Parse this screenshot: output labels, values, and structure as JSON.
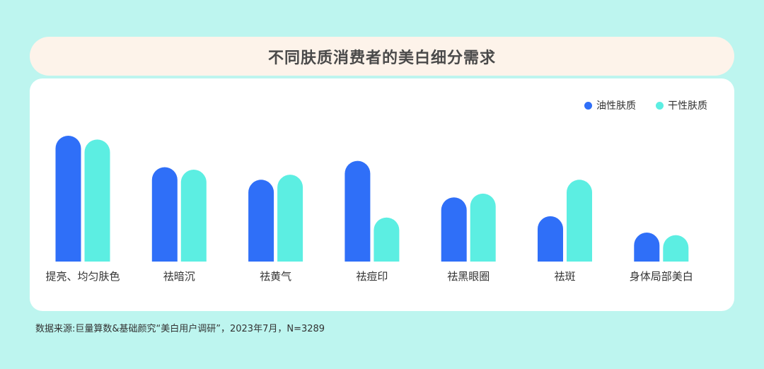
{
  "title": "不同肤质消费者的美白细分需求",
  "source": "数据来源:巨量算数&基础颜究“美白用户调研”，2023年7月，N=3289",
  "colors": {
    "oily": "#2f6ff8",
    "dry": "#5ceee2"
  },
  "chart_data": {
    "type": "bar",
    "title": "不同肤质消费者的美白细分需求",
    "categories": [
      "提亮、均匀肤色",
      "祛暗沉",
      "祛黄气",
      "祛痘印",
      "祛黑眼圈",
      "祛斑",
      "身体局部美白"
    ],
    "series": [
      {
        "name": "油性肤质",
        "color": "#2f6ff8",
        "values": [
          100,
          75,
          65,
          80,
          51,
          36,
          23
        ]
      },
      {
        "name": "干性肤质",
        "color": "#5ceee2",
        "values": [
          97,
          73,
          69,
          35,
          54,
          65,
          21
        ]
      }
    ],
    "ylim": [
      0,
      100
    ],
    "legend": "top-right",
    "grid": false
  }
}
